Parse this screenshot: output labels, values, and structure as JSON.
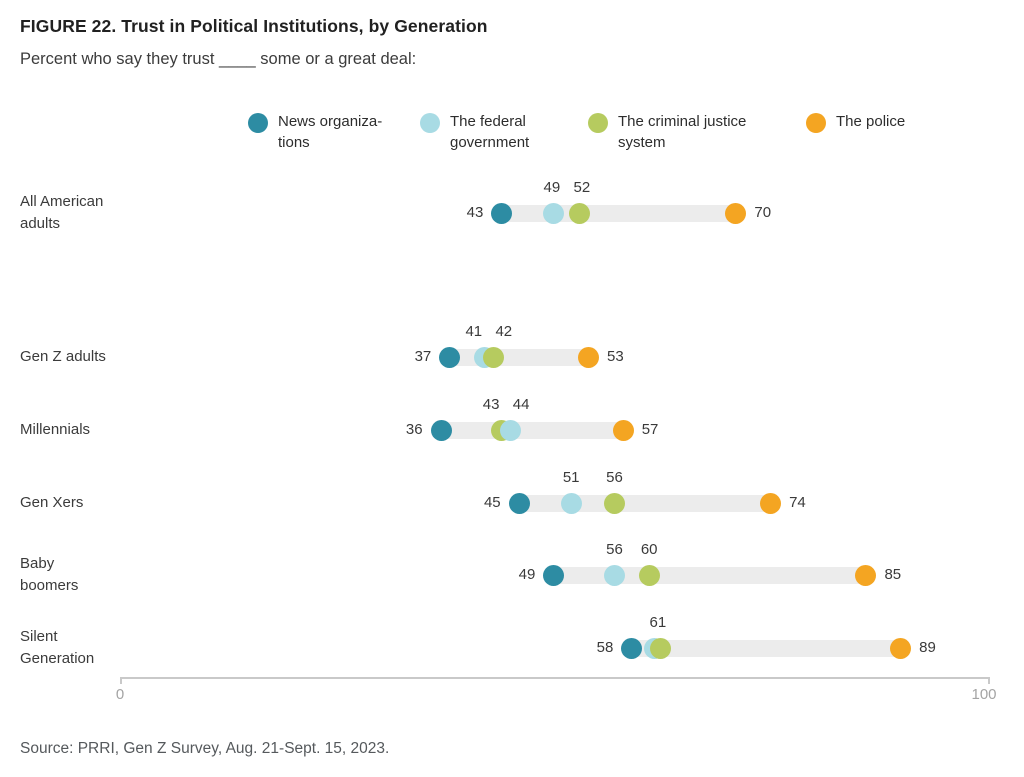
{
  "title": "FIGURE 22. Trust in Political Institutions, by Generation",
  "subtitle": "Percent who say they trust ____ some or a great deal:",
  "source": "Source: PRRI, Gen Z Survey, Aug. 21-Sept. 15, 2023.",
  "colors": {
    "news": "#2d8ca3",
    "federal": "#a8dbe4",
    "justice": "#b6cb5f",
    "police": "#f4a522",
    "range_bar": "#ececec",
    "axis": "#c9c9c9",
    "axis_label": "#a4a4a4"
  },
  "legend": {
    "items": [
      {
        "key": "news",
        "label": "News organiza-tions"
      },
      {
        "key": "federal",
        "label": "The federal government"
      },
      {
        "key": "justice",
        "label": "The criminal justice system"
      },
      {
        "key": "police",
        "label": "The police"
      }
    ]
  },
  "chart_data": {
    "type": "scatter",
    "variant": "dot-plot-range",
    "title": "FIGURE 22. Trust in Political Institutions, by Generation",
    "subtitle": "Percent who say they trust ____ some or a great deal:",
    "categories": [
      "All American adults",
      "Gen Z adults",
      "Millennials",
      "Gen Xers",
      "Baby boomers",
      "Silent Generation"
    ],
    "series": [
      {
        "name": "News organizations",
        "key": "news",
        "color": "#2d8ca3",
        "label_placement": "left",
        "values": [
          43,
          37,
          36,
          45,
          49,
          58
        ]
      },
      {
        "name": "The federal government",
        "key": "federal",
        "color": "#a8dbe4",
        "label_placement": "top",
        "values": [
          49,
          41,
          44,
          51,
          56,
          61
        ]
      },
      {
        "name": "The criminal justice system",
        "key": "justice",
        "color": "#b6cb5f",
        "label_placement": "top",
        "values": [
          52,
          42,
          43,
          56,
          60,
          61
        ]
      },
      {
        "name": "The police",
        "key": "police",
        "color": "#f4a522",
        "label_placement": "right",
        "values": [
          70,
          53,
          57,
          74,
          85,
          89
        ]
      }
    ],
    "xlim": [
      0,
      100
    ],
    "x_ticks": [
      0,
      100
    ],
    "grid": false,
    "legend_position": "top",
    "source": "Source: PRRI, Gen Z Survey, Aug. 21-Sept. 15, 2023."
  }
}
